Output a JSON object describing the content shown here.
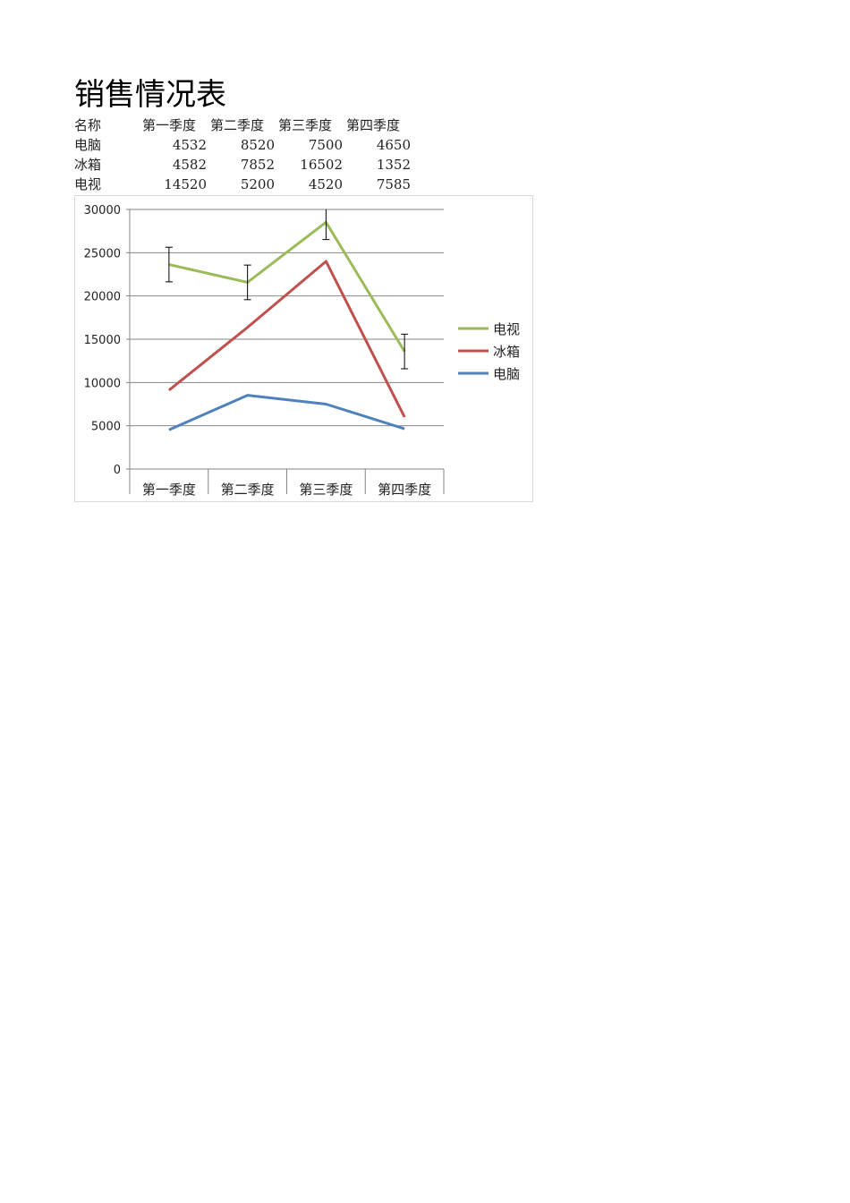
{
  "title": "销售情况表",
  "table": {
    "headers": [
      "名称",
      "第一季度",
      "第二季度",
      "第三季度",
      "第四季度"
    ],
    "rows": [
      [
        "电脑",
        "4532",
        "8520",
        "7500",
        "4650"
      ],
      [
        "冰箱",
        "4582",
        "7852",
        "16502",
        "1352"
      ],
      [
        "电视",
        "14520",
        "5200",
        "4520",
        "7585"
      ]
    ]
  },
  "chart_data": {
    "type": "line",
    "stacked": true,
    "categories": [
      "第一季度",
      "第二季度",
      "第三季度",
      "第四季度"
    ],
    "ylim": [
      0,
      30000
    ],
    "yticks": [
      "0",
      "5000",
      "10000",
      "15000",
      "20000",
      "25000",
      "30000"
    ],
    "grid": true,
    "legend": "right",
    "series": [
      {
        "name": "电脑",
        "values": [
          4532,
          8520,
          7500,
          4650
        ],
        "color": "#4f81bd"
      },
      {
        "name": "冰箱",
        "values": [
          4582,
          7852,
          16502,
          1352
        ],
        "color": "#c0504d"
      },
      {
        "name": "电视",
        "values": [
          14520,
          5200,
          4520,
          7585
        ],
        "color": "#9bbb59",
        "error_bar": 2000
      }
    ],
    "legend_order": [
      "电视",
      "冰箱",
      "电脑"
    ]
  }
}
